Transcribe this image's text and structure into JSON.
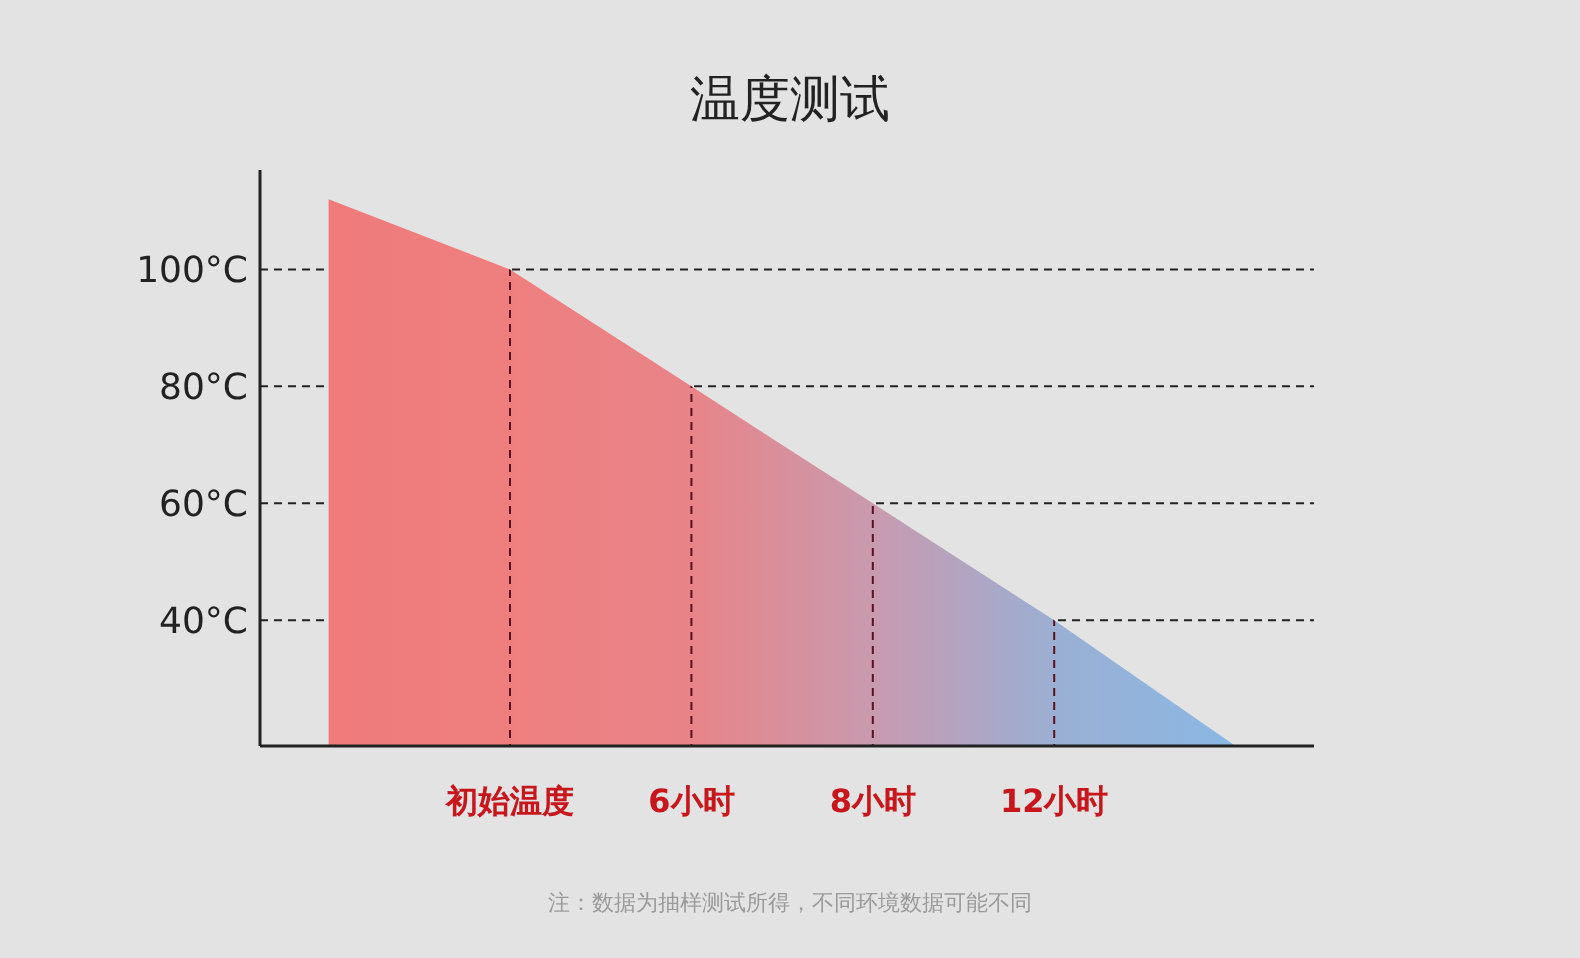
{
  "chart_data": {
    "type": "area",
    "title": "温度测试",
    "categories": [
      null,
      "初始温度",
      "6小时",
      "8小时",
      "12小时",
      null
    ],
    "series": [
      {
        "values": [
          112,
          100,
          80,
          60,
          40,
          18.5
        ],
        "colors": [
          "#ef7b7b",
          "#ef7f7f",
          "#e88489",
          "#c99aae",
          "#9bafd3",
          "#8ab8e4"
        ]
      }
    ],
    "ylim": [
      18.5,
      117
    ],
    "yticks": [
      {
        "value": 40,
        "label": "40°C"
      },
      {
        "value": 60,
        "label": "60°C"
      },
      {
        "value": 80,
        "label": "80°C"
      },
      {
        "value": 100,
        "label": "100°C"
      }
    ],
    "grid": true,
    "annotations": [
      "注：数据为抽样测试所得，不同环境数据可能不同"
    ]
  }
}
